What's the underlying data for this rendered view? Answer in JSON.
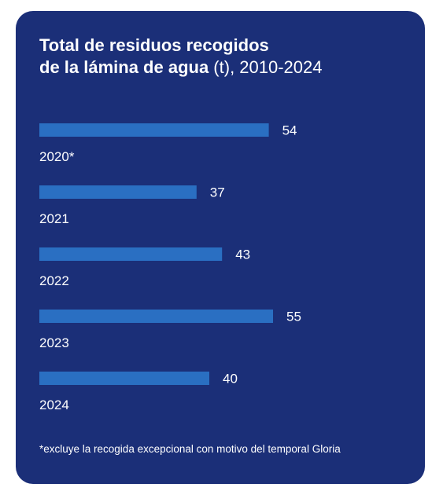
{
  "title": {
    "bold_line1": "Total de residuos recogidos",
    "bold_line2": "de la lámina de agua",
    "light_line2": " (t), 2010-2024"
  },
  "chart_data": {
    "type": "bar",
    "orientation": "horizontal",
    "categories": [
      "2020*",
      "2021",
      "2022",
      "2023",
      "2024"
    ],
    "values": [
      54,
      37,
      43,
      55,
      40
    ],
    "bar_color": "#2a6fc2",
    "background_color": "#1b2f78"
  },
  "footnote": "*excluye la recogida excepcional con motivo del temporal Gloria"
}
